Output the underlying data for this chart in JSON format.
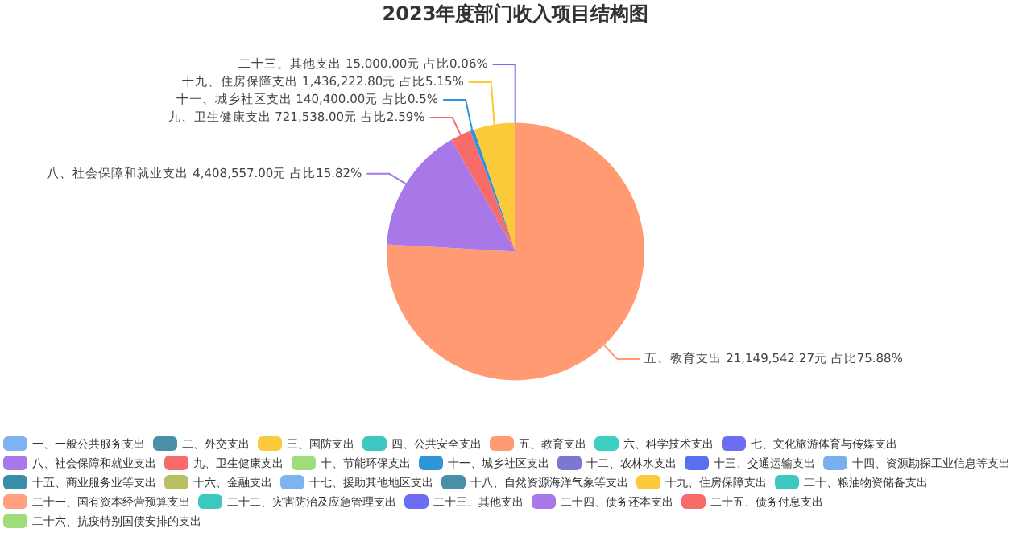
{
  "chart_data": {
    "type": "pie",
    "title": "2023年度部门收入项目结构图",
    "categories": [
      "一、一般公共服务支出",
      "二、外交支出",
      "三、国防支出",
      "四、公共安全支出",
      "五、教育支出",
      "六、科学技术支出",
      "七、文化旅游体育与传媒支出",
      "八、社会保障和就业支出",
      "九、卫生健康支出",
      "十、节能环保支出",
      "十一、城乡社区支出",
      "十二、农林水支出",
      "十三、交通运输支出",
      "十四、资源勘探工业信息等支出",
      "十五、商业服务业等支出",
      "十六、金融支出",
      "十七、援助其他地区支出",
      "十八、自然资源海洋气象等支出",
      "十九、住房保障支出",
      "二十、粮油物资储备支出",
      "二十一、国有资本经营预算支出",
      "二十二、灾害防治及应急管理支出",
      "二十三、其他支出",
      "二十四、债务还本支出",
      "二十五、债务付息支出",
      "二十六、抗疫特别国债安排的支出"
    ],
    "values": [
      0,
      0,
      0,
      0,
      21149542.27,
      0,
      0,
      4408557.0,
      721538.0,
      0,
      140400.0,
      0,
      0,
      0,
      0,
      0,
      0,
      0,
      1436222.8,
      0,
      0,
      0,
      15000.0,
      0,
      0,
      0
    ],
    "colors": [
      "#7fb3f0",
      "#4b8ea8",
      "#fcc93a",
      "#3cc8c0",
      "#ff9a72",
      "#3ccfc4",
      "#6b6ef5",
      "#a878e8",
      "#f76b6b",
      "#9ede7a",
      "#2e95d8",
      "#7a78d0",
      "#5a6ef0",
      "#7ab0f0",
      "#3a8fa8",
      "#b8c060",
      "#7fb3f0",
      "#4b8ea8",
      "#fcc93a",
      "#3cc8c0",
      "#ffa080",
      "#3cc8c0",
      "#6b6ef5",
      "#a878e8",
      "#f76b6b",
      "#9ede7a"
    ],
    "value_labels": [
      null,
      null,
      null,
      null,
      "五、教育支出 21,149,542.27元 占比75.88%",
      null,
      null,
      "八、社会保障和就业支出 4,408,557.00元 占比15.82%",
      "九、卫生健康支出 721,538.00元 占比2.59%",
      null,
      "十一、城乡社区支出 140,400.00元 占比0.5%",
      null,
      null,
      null,
      null,
      null,
      null,
      null,
      "十九、住房保障支出 1,436,222.80元 占比5.15%",
      null,
      null,
      null,
      "二十三、其他支出 15,000.00元 占比0.06%",
      null,
      null,
      null
    ],
    "legend": "bottom"
  }
}
